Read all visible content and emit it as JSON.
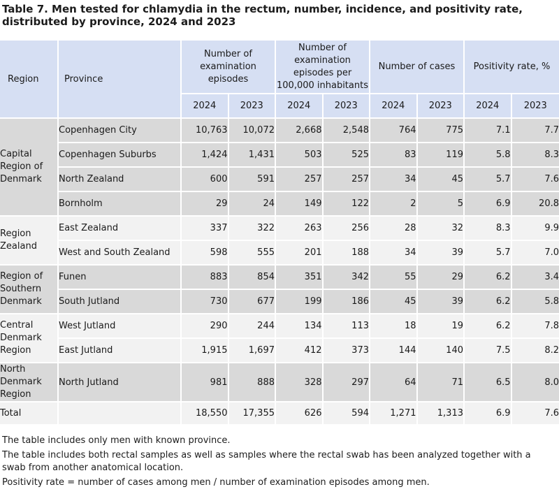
{
  "title": "Table 7. Men tested for chlamydia in the rectum, number, incidence, and positivity rate, distributed by province, 2024 and 2023",
  "header": {
    "region": "Region",
    "province": "Province",
    "groups": [
      "Number of examination episodes",
      "Number of examination episodes per 100,000 inhabitants",
      "Number of cases",
      "Positivity rate, %"
    ],
    "years": [
      "2024",
      "2023",
      "2024",
      "2023",
      "2024",
      "2023",
      "2024",
      "2023"
    ]
  },
  "regions": [
    {
      "name": "Capital Region of Denmark",
      "provinces": [
        {
          "name": "Copenhagen City",
          "values": [
            "10,763",
            "10,072",
            "2,668",
            "2,548",
            "764",
            "775",
            "7.1",
            "7.7"
          ]
        },
        {
          "name": "Copenhagen Suburbs",
          "values": [
            "1,424",
            "1,431",
            "503",
            "525",
            "83",
            "119",
            "5.8",
            "8.3"
          ]
        },
        {
          "name": "North Zealand",
          "values": [
            "600",
            "591",
            "257",
            "257",
            "34",
            "45",
            "5.7",
            "7.6"
          ]
        },
        {
          "name": "Bornholm",
          "values": [
            "29",
            "24",
            "149",
            "122",
            "2",
            "5",
            "6.9",
            "20.8"
          ]
        }
      ]
    },
    {
      "name": "Region Zealand",
      "provinces": [
        {
          "name": "East Zealand",
          "values": [
            "337",
            "322",
            "263",
            "256",
            "28",
            "32",
            "8.3",
            "9.9"
          ]
        },
        {
          "name": "West and South Zealand",
          "values": [
            "598",
            "555",
            "201",
            "188",
            "34",
            "39",
            "5.7",
            "7.0"
          ]
        }
      ]
    },
    {
      "name": "Region of Southern Denmark",
      "provinces": [
        {
          "name": "Funen",
          "values": [
            "883",
            "854",
            "351",
            "342",
            "55",
            "29",
            "6.2",
            "3.4"
          ]
        },
        {
          "name": "South Jutland",
          "values": [
            "730",
            "677",
            "199",
            "186",
            "45",
            "39",
            "6.2",
            "5.8"
          ]
        }
      ]
    },
    {
      "name": "Central Denmark Region",
      "provinces": [
        {
          "name": "West Jutland",
          "values": [
            "290",
            "244",
            "134",
            "113",
            "18",
            "19",
            "6.2",
            "7.8"
          ]
        },
        {
          "name": "East Jutland",
          "values": [
            "1,915",
            "1,697",
            "412",
            "373",
            "144",
            "140",
            "7.5",
            "8.2"
          ]
        }
      ]
    },
    {
      "name": "North Denmark Region",
      "provinces": [
        {
          "name": "North Jutland",
          "values": [
            "981",
            "888",
            "328",
            "297",
            "64",
            "71",
            "6.5",
            "8.0"
          ]
        }
      ]
    }
  ],
  "total": {
    "label": "Total",
    "values": [
      "18,550",
      "17,355",
      "626",
      "594",
      "1,271",
      "1,313",
      "6.9",
      "7.6"
    ]
  },
  "notes": [
    "The table includes only men with known province.",
    "The table includes both rectal samples as well as samples where the rectal swab has been analyzed together with a swab from another anatomical location.",
    "Positivity rate = number of cases among men / number of examination episodes among men."
  ],
  "colors": {
    "header": "#d6dff3",
    "band_dark": "#d9d9d9",
    "band_light": "#f2f2f2"
  }
}
